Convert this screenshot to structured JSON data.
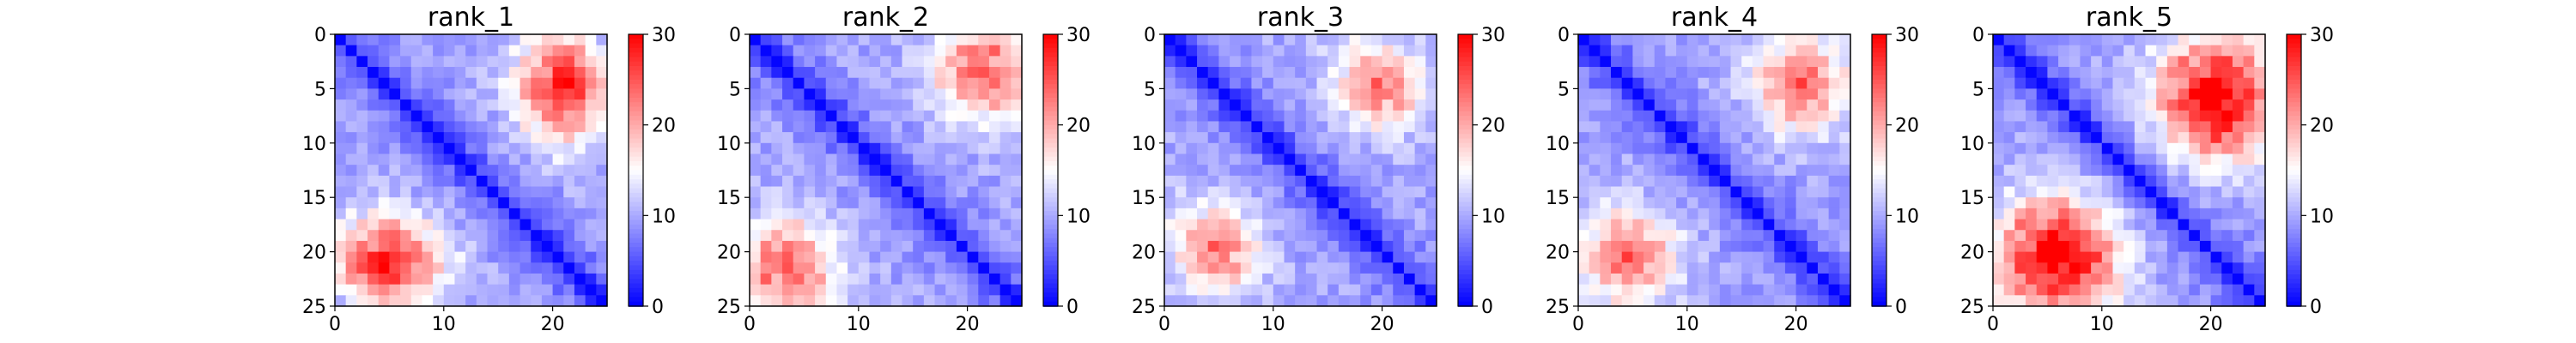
{
  "chart_data": [
    {
      "type": "heatmap",
      "title": "rank_1",
      "rows": 25,
      "cols": 25,
      "x_ticks": [
        0,
        10,
        20
      ],
      "y_ticks": [
        0,
        5,
        10,
        15,
        20,
        25
      ],
      "colorbar": {
        "min": 0,
        "max": 30,
        "ticks": [
          0,
          10,
          20,
          30
        ],
        "colormap": "bwr"
      },
      "hot_spots": [
        {
          "row": 2,
          "col": 20,
          "value": 18,
          "spread": 2.5
        },
        {
          "row": 8,
          "col": 21,
          "value": 16,
          "spread": 2.5
        },
        {
          "row": 19,
          "col": 5,
          "value": 18,
          "spread": 2.5
        },
        {
          "row": 22,
          "col": 4,
          "value": 17,
          "spread": 2.0
        }
      ],
      "seed": 11
    },
    {
      "type": "heatmap",
      "title": "rank_2",
      "rows": 25,
      "cols": 25,
      "x_ticks": [
        0,
        10,
        20
      ],
      "y_ticks": [
        0,
        5,
        10,
        15,
        20,
        25
      ],
      "colorbar": {
        "min": 0,
        "max": 30,
        "ticks": [
          0,
          10,
          20,
          30
        ],
        "colormap": "bwr"
      },
      "hot_spots": [
        {
          "row": 3,
          "col": 21,
          "value": 18,
          "spread": 3.0
        },
        {
          "row": 21,
          "col": 3,
          "value": 18,
          "spread": 3.0
        }
      ],
      "seed": 23
    },
    {
      "type": "heatmap",
      "title": "rank_3",
      "rows": 25,
      "cols": 25,
      "x_ticks": [
        0,
        10,
        20
      ],
      "y_ticks": [
        0,
        5,
        10,
        15,
        20,
        25
      ],
      "colorbar": {
        "min": 0,
        "max": 30,
        "ticks": [
          0,
          10,
          20,
          30
        ],
        "colormap": "bwr"
      },
      "hot_spots": [
        {
          "row": 3,
          "col": 18,
          "value": 16,
          "spread": 2.5
        },
        {
          "row": 20,
          "col": 5,
          "value": 20,
          "spread": 2.5
        }
      ],
      "seed": 37
    },
    {
      "type": "heatmap",
      "title": "rank_4",
      "rows": 25,
      "cols": 25,
      "x_ticks": [
        0,
        10,
        20
      ],
      "y_ticks": [
        0,
        5,
        10,
        15,
        20,
        25
      ],
      "colorbar": {
        "min": 0,
        "max": 30,
        "ticks": [
          0,
          10,
          20,
          30
        ],
        "colormap": "bwr"
      },
      "hot_spots": [
        {
          "row": 4,
          "col": 20,
          "value": 17,
          "spread": 3.0
        },
        {
          "row": 20,
          "col": 4,
          "value": 17,
          "spread": 3.0
        }
      ],
      "seed": 41
    },
    {
      "type": "heatmap",
      "title": "rank_5",
      "rows": 25,
      "cols": 25,
      "x_ticks": [
        0,
        10,
        20
      ],
      "y_ticks": [
        0,
        5,
        10,
        15,
        20,
        25
      ],
      "colorbar": {
        "min": 0,
        "max": 30,
        "ticks": [
          0,
          10,
          20,
          30
        ],
        "colormap": "bwr"
      },
      "hot_spots": [
        {
          "row": 5,
          "col": 20,
          "value": 21,
          "spread": 4.0
        },
        {
          "row": 20,
          "col": 6,
          "value": 22,
          "spread": 3.5
        }
      ],
      "seed": 53
    }
  ]
}
